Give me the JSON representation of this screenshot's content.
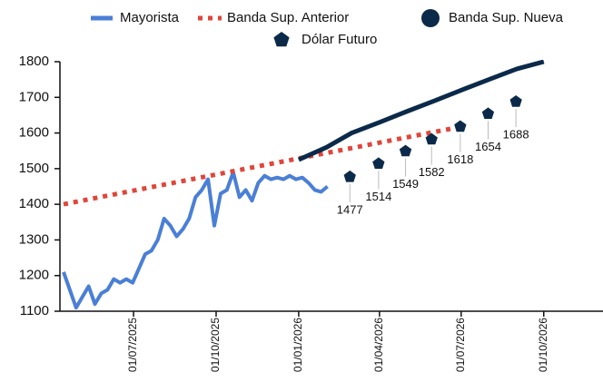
{
  "chart_data": {
    "type": "line",
    "xlim": [
      "2025-04-10",
      "2026-12-06"
    ],
    "xticks": [
      "2025-07-01",
      "2025-10-01",
      "2026-01-01",
      "2026-04-01",
      "2026-07-01",
      "2026-10-01"
    ],
    "xtick_labels": [
      "01/07/2025",
      "01/10/2025",
      "01/01/2026",
      "01/04/2026",
      "01/07/2026",
      "01/10/2026"
    ],
    "ylim": [
      1100,
      1800
    ],
    "yticks": [
      1100,
      1200,
      1300,
      1400,
      1500,
      1600,
      1700,
      1800
    ],
    "series": [
      {
        "name": "Mayorista",
        "color": "#4a7fd6",
        "style": "solid",
        "x": [
          "2025-04-14",
          "2025-04-21",
          "2025-04-28",
          "2025-05-05",
          "2025-05-12",
          "2025-05-19",
          "2025-05-26",
          "2025-06-02",
          "2025-06-09",
          "2025-06-16",
          "2025-06-23",
          "2025-06-30",
          "2025-07-07",
          "2025-07-14",
          "2025-07-21",
          "2025-07-28",
          "2025-08-04",
          "2025-08-11",
          "2025-08-18",
          "2025-08-25",
          "2025-09-01",
          "2025-09-08",
          "2025-09-15",
          "2025-09-22",
          "2025-09-29",
          "2025-10-06",
          "2025-10-13",
          "2025-10-20",
          "2025-10-27",
          "2025-11-03",
          "2025-11-10",
          "2025-11-17",
          "2025-11-24",
          "2025-12-01",
          "2025-12-08",
          "2025-12-15",
          "2025-12-22",
          "2025-12-29",
          "2026-01-05",
          "2026-01-12",
          "2026-01-19",
          "2026-01-26",
          "2026-02-02"
        ],
        "values": [
          1210,
          1160,
          1110,
          1140,
          1170,
          1120,
          1150,
          1160,
          1190,
          1180,
          1190,
          1180,
          1220,
          1260,
          1270,
          1300,
          1360,
          1340,
          1310,
          1330,
          1360,
          1420,
          1440,
          1470,
          1340,
          1430,
          1440,
          1490,
          1420,
          1440,
          1410,
          1460,
          1480,
          1470,
          1475,
          1470,
          1480,
          1470,
          1475,
          1460,
          1440,
          1435,
          1450
        ]
      },
      {
        "name": "Banda Sup. Anterior",
        "color": "#e0463a",
        "style": "dotted",
        "x": [
          "2025-04-14",
          "2026-07-06"
        ],
        "values": [
          1400,
          1620
        ]
      },
      {
        "name": "Banda Sup. Nueva",
        "color": "#0b2a4a",
        "style": "thick",
        "x": [
          "2026-01-01",
          "2026-02-01",
          "2026-03-01",
          "2026-04-01",
          "2026-05-01",
          "2026-06-01",
          "2026-07-01",
          "2026-08-01",
          "2026-09-01",
          "2026-10-01"
        ],
        "values": [
          1525,
          1560,
          1600,
          1630,
          1660,
          1690,
          1720,
          1750,
          1780,
          1800
        ]
      },
      {
        "name": "Dólar Futuro",
        "color": "#0b2a4a",
        "style": "marker",
        "x": [
          "2026-02-27",
          "2026-03-31",
          "2026-04-30",
          "2026-05-29",
          "2026-06-30",
          "2026-07-31",
          "2026-08-31"
        ],
        "values": [
          1477,
          1514,
          1549,
          1582,
          1618,
          1654,
          1688
        ]
      }
    ]
  }
}
